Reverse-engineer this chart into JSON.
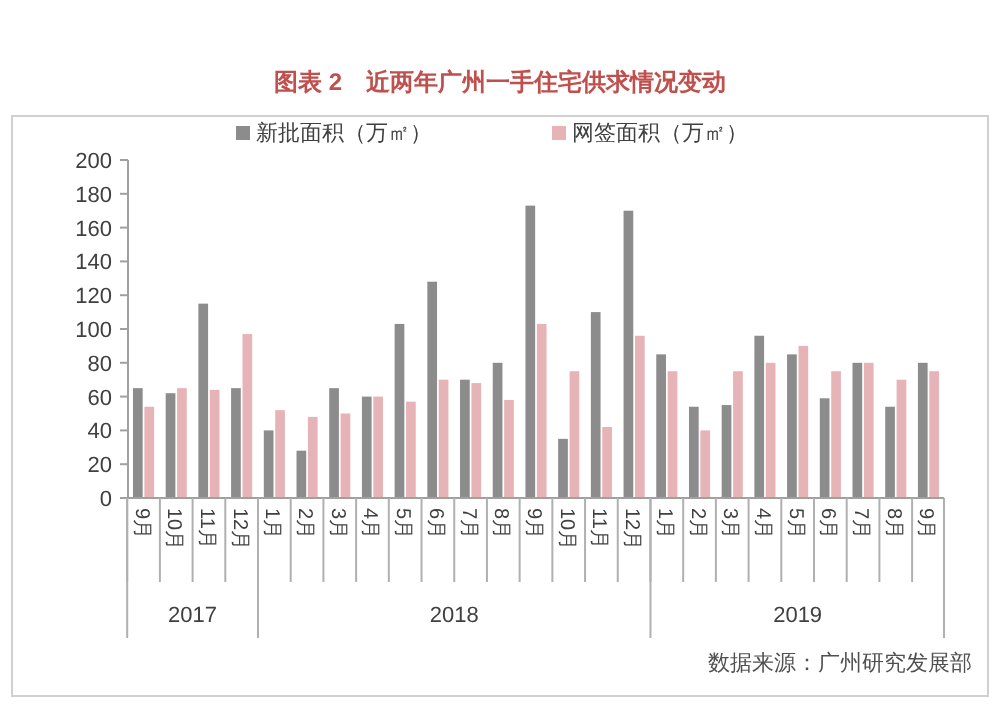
{
  "chart_data": {
    "type": "bar",
    "title": "图表 2　近两年广州一手住宅供求情况变动",
    "categories": [
      "9月",
      "10月",
      "11月",
      "12月",
      "1月",
      "2月",
      "3月",
      "4月",
      "5月",
      "6月",
      "7月",
      "8月",
      "9月",
      "10月",
      "11月",
      "12月",
      "1月",
      "2月",
      "3月",
      "4月",
      "5月",
      "6月",
      "7月",
      "8月",
      "9月"
    ],
    "series": [
      {
        "name": "新批面积（万㎡）",
        "color": "#8c8c8c",
        "values": [
          65,
          62,
          115,
          65,
          40,
          28,
          65,
          60,
          103,
          128,
          70,
          80,
          173,
          35,
          110,
          170,
          85,
          54,
          55,
          96,
          85,
          59,
          80,
          54,
          80
        ]
      },
      {
        "name": "网签面积（万㎡）",
        "color": "#e6b3b7",
        "values": [
          54,
          65,
          64,
          97,
          52,
          48,
          50,
          60,
          57,
          70,
          68,
          58,
          103,
          75,
          42,
          96,
          75,
          40,
          75,
          80,
          90,
          75,
          80,
          70,
          75
        ]
      }
    ],
    "ylim": [
      0,
      200
    ],
    "yticks": [
      0,
      20,
      40,
      60,
      80,
      100,
      120,
      140,
      160,
      180,
      200
    ],
    "legend": "top",
    "annotations": [
      "2017",
      "2018",
      "2019",
      "数据来源：广州研究发展部"
    ]
  }
}
